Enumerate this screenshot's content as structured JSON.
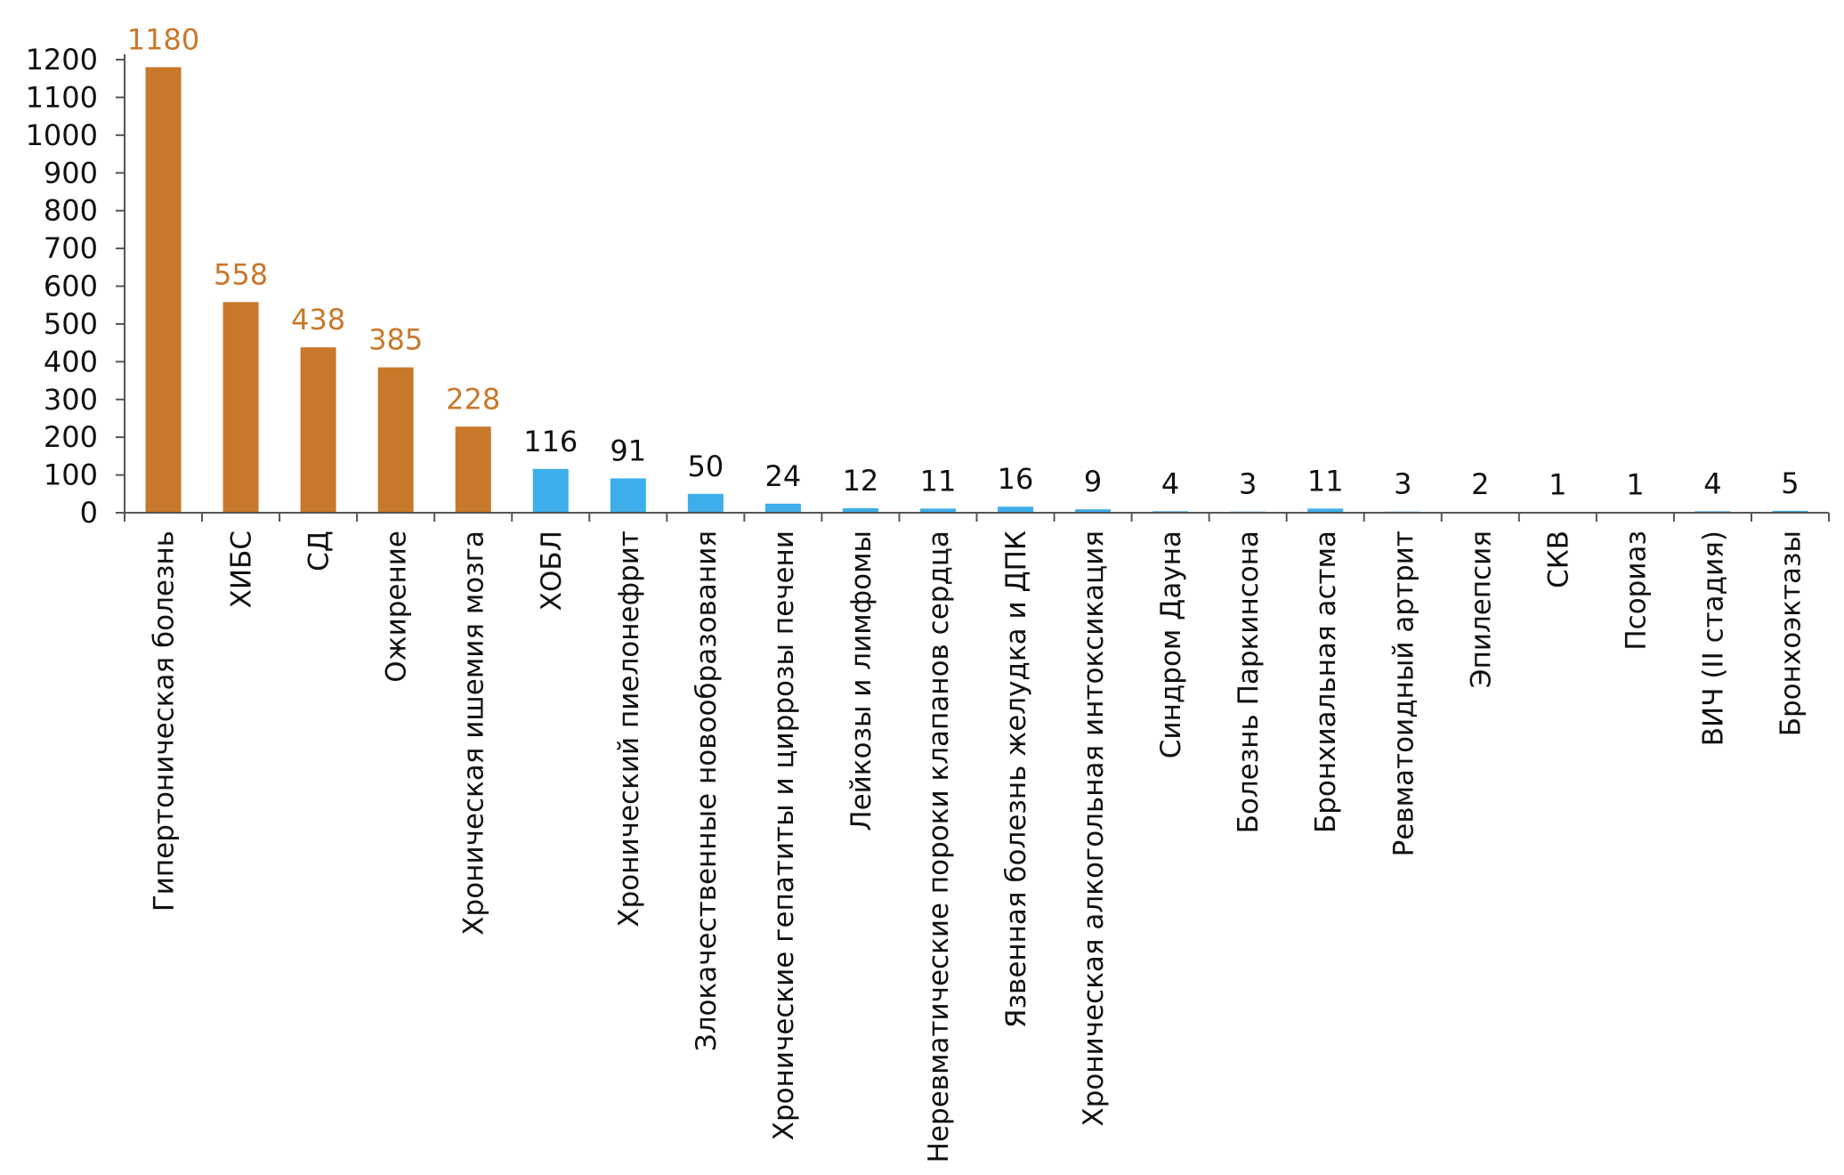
{
  "chart_data": {
    "type": "bar",
    "title": "",
    "xlabel": "",
    "ylabel": "",
    "ylim": [
      0,
      1200
    ],
    "yticks": [
      0,
      100,
      200,
      300,
      400,
      500,
      600,
      700,
      800,
      900,
      1000,
      1100,
      1200
    ],
    "grid": false,
    "legend": "none",
    "colors": {
      "highlight": "#c8782a",
      "regular": "#3daee9",
      "axis": "#555555",
      "text": "#111111"
    },
    "highlight_count": 5,
    "categories": [
      "Гипертоническая болезнь",
      "ХИБС",
      "СД",
      "Ожирение",
      "Хроническая ишемия мозга",
      "ХОБЛ",
      "Хронический пиелонефрит",
      "Злокачественные новообразования",
      "Хронические гепатиты и циррозы печени",
      "Лейкозы и лимфомы",
      "Неревматические пороки клапанов сердца",
      "Язвенная болезнь желудка и ДПК",
      "Хроническая алкогольная интоксикация",
      "Синдром Дауна",
      "Болезнь Паркинсона",
      "Бронхиальная астма",
      "Ревматоидный артрит",
      "Эпилепсия",
      "СКВ",
      "Псориаз",
      "ВИЧ (II стадия)",
      "Бронхоэктазы"
    ],
    "values": [
      1180,
      558,
      438,
      385,
      228,
      116,
      91,
      50,
      24,
      12,
      11,
      16,
      9,
      4,
      3,
      11,
      3,
      2,
      1,
      1,
      4,
      5
    ],
    "value_labels": [
      "1180",
      "558",
      "438",
      "385",
      "228",
      "116",
      "91",
      "50",
      "24",
      "12",
      "11",
      "16",
      "9",
      "4",
      "3",
      "11",
      "3",
      "2",
      "1",
      "1",
      "4",
      "5"
    ]
  }
}
